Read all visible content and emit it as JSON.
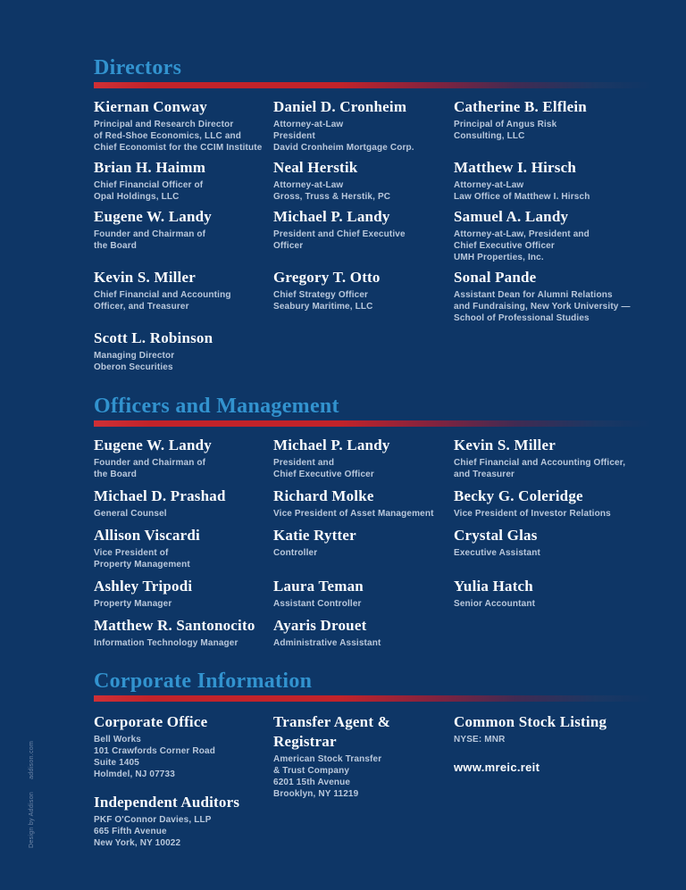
{
  "theme": {
    "background": "#0e3666",
    "heading_blue": "#3293cf",
    "accent_red": "#c2232a",
    "name_white": "#fafcfe",
    "subtitle_blue": "#b9c8dc"
  },
  "directors": {
    "title": "Directors",
    "people": [
      {
        "name": "Kiernan Conway",
        "title": "Principal and Research Director\nof Red-Shoe Economics, LLC and\nChief Economist for the CCIM Institute"
      },
      {
        "name": "Daniel D. Cronheim",
        "title": "Attorney-at-Law\nPresident\nDavid Cronheim Mortgage Corp."
      },
      {
        "name": "Catherine B. Elflein",
        "title": "Principal of Angus Risk\nConsulting, LLC"
      },
      {
        "name": "Brian H. Haimm",
        "title": "Chief Financial Officer of\nOpal Holdings, LLC"
      },
      {
        "name": "Neal Herstik",
        "title": "Attorney-at-Law\nGross, Truss & Herstik, PC"
      },
      {
        "name": "Matthew I. Hirsch",
        "title": "Attorney-at-Law\nLaw Office of Matthew I. Hirsch"
      },
      {
        "name": "Eugene W. Landy",
        "title": "Founder and Chairman of\nthe Board"
      },
      {
        "name": "Michael P. Landy",
        "title": "President and Chief Executive\nOfficer"
      },
      {
        "name": "Samuel A. Landy",
        "title": "Attorney-at-Law, President and\nChief Executive Officer\nUMH Properties, Inc."
      },
      {
        "name": "Kevin S. Miller",
        "title": "Chief Financial and Accounting\nOfficer, and Treasurer"
      },
      {
        "name": "Gregory T. Otto",
        "title": "Chief Strategy Officer\nSeabury Maritime, LLC"
      },
      {
        "name": "Sonal Pande",
        "title": "Assistant Dean for Alumni Relations\nand Fundraising, New York University —\nSchool of Professional Studies"
      },
      {
        "name": "Scott L. Robinson",
        "title": "Managing Director\nOberon Securities"
      }
    ]
  },
  "officers": {
    "title": "Officers and Management",
    "people": [
      {
        "name": "Eugene W. Landy",
        "title": "Founder and Chairman of\nthe Board"
      },
      {
        "name": "Michael P. Landy",
        "title": "President and\nChief Executive Officer"
      },
      {
        "name": "Kevin S. Miller",
        "title": "Chief Financial and Accounting Officer,\nand Treasurer"
      },
      {
        "name": "Michael D. Prashad",
        "title": "General Counsel"
      },
      {
        "name": "Richard Molke",
        "title": "Vice President of Asset Management"
      },
      {
        "name": "Becky G. Coleridge",
        "title": "Vice President of Investor Relations"
      },
      {
        "name": "Allison Viscardi",
        "title": "Vice President of\nProperty Management"
      },
      {
        "name": "Katie Rytter",
        "title": "Controller"
      },
      {
        "name": "Crystal Glas",
        "title": "Executive Assistant"
      },
      {
        "name": "Ashley Tripodi",
        "title": "Property Manager"
      },
      {
        "name": "Laura Teman",
        "title": "Assistant Controller"
      },
      {
        "name": "Yulia Hatch",
        "title": "Senior Accountant"
      },
      {
        "name": "Matthew R. Santonocito",
        "title": "Information Technology Manager"
      },
      {
        "name": "Ayaris Drouet",
        "title": "Administrative Assistant"
      }
    ]
  },
  "corporate": {
    "title": "Corporate Information",
    "office": {
      "heading": "Corporate Office",
      "lines": "Bell Works\n101 Crawfords Corner Road\nSuite 1405\nHolmdel, NJ 07733"
    },
    "auditors": {
      "heading": "Independent Auditors",
      "lines": "PKF O'Connor Davies, LLP\n665 Fifth Avenue\nNew York, NY 10022"
    },
    "transfer": {
      "heading": "Transfer Agent &\nRegistrar",
      "lines": "American Stock Transfer\n& Trust Company\n6201 15th Avenue\nBrooklyn, NY 11219"
    },
    "stock": {
      "heading": "Common Stock Listing",
      "ticker": "NYSE: MNR",
      "website": "www.mreic.reit"
    }
  },
  "credit": {
    "design": "Design by Addison",
    "site": "addison.com"
  }
}
